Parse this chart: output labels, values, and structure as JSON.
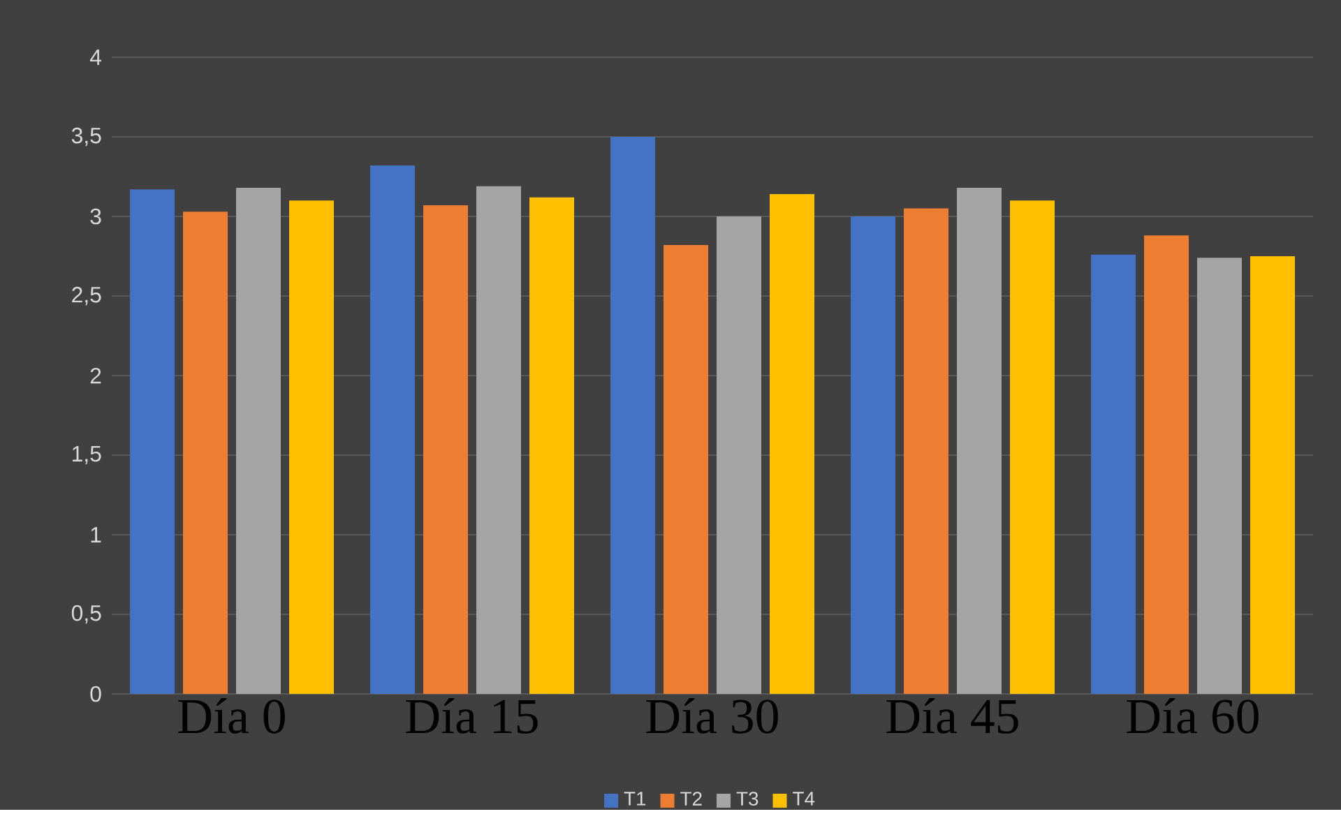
{
  "chart_data": {
    "type": "bar",
    "categories": [
      "Día 0",
      "Día 15",
      "Día 30",
      "Día 45",
      "Día 60"
    ],
    "series": [
      {
        "name": "T1",
        "color": "#4472c4",
        "values": [
          3.17,
          3.32,
          3.5,
          3.0,
          2.76
        ]
      },
      {
        "name": "T2",
        "color": "#ed7d31",
        "values": [
          3.03,
          3.07,
          2.82,
          3.05,
          2.88
        ]
      },
      {
        "name": "T3",
        "color": "#a5a5a5",
        "values": [
          3.18,
          3.19,
          3.0,
          3.18,
          2.74
        ]
      },
      {
        "name": "T4",
        "color": "#ffc000",
        "values": [
          3.1,
          3.12,
          3.14,
          3.1,
          2.75
        ]
      }
    ],
    "ylim": [
      0,
      4
    ],
    "yticks": [
      0,
      {
        "value": 0.5,
        "label": "0,5"
      },
      1,
      {
        "value": 1.5,
        "label": "1,5"
      },
      2,
      {
        "value": 2.5,
        "label": "2,5"
      },
      3,
      {
        "value": 3.5,
        "label": "3,5"
      },
      4
    ],
    "grid": "y",
    "legend": "bottom"
  }
}
